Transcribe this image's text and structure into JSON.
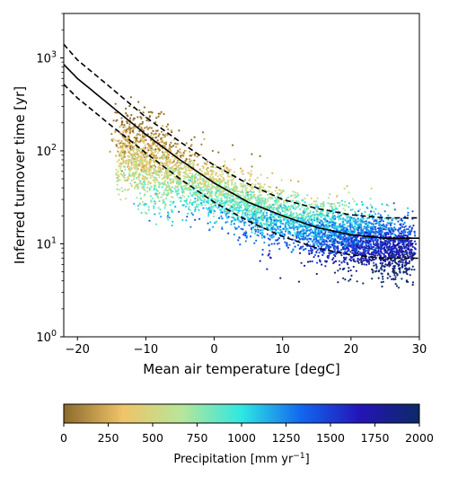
{
  "chart_data": {
    "type": "scatter",
    "title": "",
    "xlabel": "Mean air temperature [degC]",
    "ylabel": "Inferred turnover time [yr]",
    "xlim": [
      -22,
      30
    ],
    "ylim": [
      1,
      3000
    ],
    "y_scale": "log",
    "grid": false,
    "x_ticks": [
      -20,
      -10,
      0,
      10,
      20,
      30
    ],
    "y_ticks": [
      {
        "value": 1,
        "base": "10",
        "exp": "0"
      },
      {
        "value": 10,
        "base": "10",
        "exp": "1"
      },
      {
        "value": 100,
        "base": "10",
        "exp": "2"
      },
      {
        "value": 1000,
        "base": "10",
        "exp": "3"
      }
    ],
    "point_color_variable": "precipitation",
    "point_density_profile": [
      {
        "temp": -13,
        "turnover_center": 95,
        "precip_center": 350
      },
      {
        "temp": -8,
        "turnover_center": 70,
        "precip_center": 420
      },
      {
        "temp": -3,
        "turnover_center": 45,
        "precip_center": 650
      },
      {
        "temp": 2,
        "turnover_center": 30,
        "precip_center": 800
      },
      {
        "temp": 8,
        "turnover_center": 20,
        "precip_center": 950
      },
      {
        "temp": 15,
        "turnover_center": 14,
        "precip_center": 1150
      },
      {
        "temp": 22,
        "turnover_center": 11,
        "precip_center": 1450
      },
      {
        "temp": 27,
        "turnover_center": 9,
        "precip_center": 1700
      }
    ],
    "fit_lines": [
      {
        "style": "solid",
        "x": [
          -22,
          -20,
          -15,
          -10,
          -5,
          0,
          5,
          10,
          15,
          20,
          25,
          30
        ],
        "y": [
          850,
          600,
          300,
          150,
          80,
          45,
          28,
          20,
          15,
          12.5,
          11.5,
          11.5
        ]
      },
      {
        "style": "dashed",
        "x": [
          -22,
          -20,
          -15,
          -10,
          -5,
          0,
          5,
          10,
          15,
          20,
          25,
          30
        ],
        "y": [
          1400,
          950,
          470,
          230,
          125,
          70,
          44,
          30,
          24,
          20.5,
          19,
          19
        ]
      },
      {
        "style": "dashed",
        "x": [
          -22,
          -20,
          -15,
          -10,
          -5,
          0,
          5,
          10,
          15,
          20,
          25,
          30
        ],
        "y": [
          520,
          370,
          185,
          95,
          50,
          28,
          17.5,
          12,
          9,
          7.6,
          7,
          7
        ]
      }
    ],
    "colorbar": {
      "label_main": "Precipitation [mm yr",
      "label_sup": "−1",
      "label_end": "]",
      "min": 0,
      "max": 2000,
      "ticks": [
        0,
        250,
        500,
        750,
        1000,
        1250,
        1500,
        1750,
        2000
      ],
      "stops": [
        "#8c6a2c",
        "#f0c468",
        "#b6e69a",
        "#2ee8e2",
        "#1267f0",
        "#2414b8",
        "#0c2a66"
      ]
    }
  }
}
